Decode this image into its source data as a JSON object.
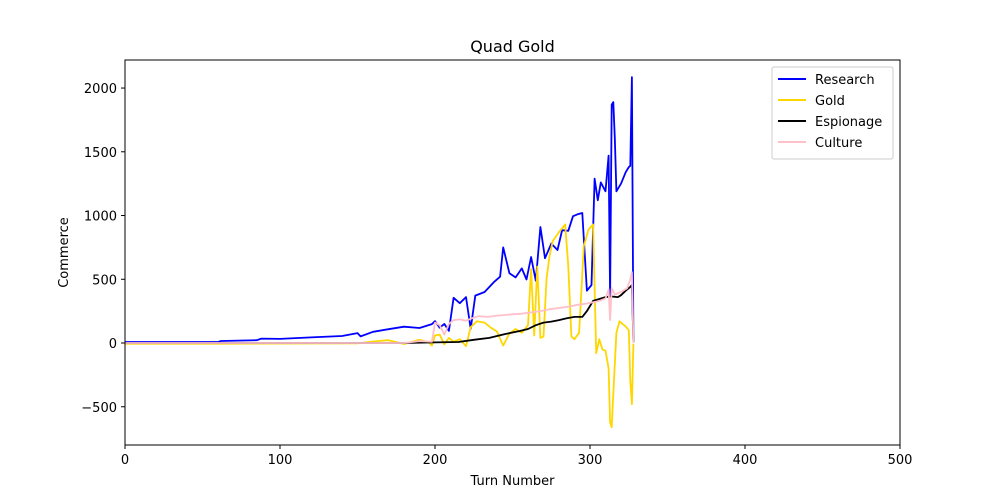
{
  "chart_data": {
    "type": "line",
    "title": "Quad Gold",
    "xlabel": "Turn Number",
    "ylabel": "Commerce",
    "xlim": [
      0,
      500
    ],
    "ylim": [
      -800,
      2220
    ],
    "x_ticks": [
      0,
      100,
      200,
      300,
      400,
      500
    ],
    "y_ticks": [
      -500,
      0,
      500,
      1000,
      1500,
      2000
    ],
    "x_tick_labels": [
      "0",
      "100",
      "200",
      "300",
      "400",
      "500"
    ],
    "y_tick_labels": [
      "−500",
      "0",
      "500",
      "1000",
      "1500",
      "2000"
    ],
    "grid": false,
    "legend_position": "top-right",
    "series": [
      {
        "name": "Research",
        "color": "#0000ff",
        "points": [
          [
            0,
            8
          ],
          [
            60,
            8
          ],
          [
            62,
            16
          ],
          [
            85,
            22
          ],
          [
            88,
            35
          ],
          [
            100,
            32
          ],
          [
            120,
            44
          ],
          [
            140,
            55
          ],
          [
            150,
            78
          ],
          [
            152,
            52
          ],
          [
            160,
            88
          ],
          [
            170,
            108
          ],
          [
            180,
            128
          ],
          [
            190,
            118
          ],
          [
            198,
            148
          ],
          [
            200,
            172
          ],
          [
            203,
            120
          ],
          [
            206,
            150
          ],
          [
            209,
            95
          ],
          [
            212,
            355
          ],
          [
            216,
            312
          ],
          [
            220,
            360
          ],
          [
            223,
            112
          ],
          [
            226,
            372
          ],
          [
            232,
            400
          ],
          [
            238,
            478
          ],
          [
            242,
            520
          ],
          [
            244,
            750
          ],
          [
            248,
            548
          ],
          [
            252,
            515
          ],
          [
            256,
            585
          ],
          [
            259,
            498
          ],
          [
            262,
            675
          ],
          [
            265,
            488
          ],
          [
            268,
            910
          ],
          [
            271,
            665
          ],
          [
            275,
            780
          ],
          [
            279,
            730
          ],
          [
            282,
            885
          ],
          [
            286,
            880
          ],
          [
            289,
            995
          ],
          [
            292,
            1010
          ],
          [
            295,
            1020
          ],
          [
            298,
            410
          ],
          [
            301,
            455
          ],
          [
            303,
            1290
          ],
          [
            305,
            1120
          ],
          [
            307,
            1260
          ],
          [
            310,
            1190
          ],
          [
            312,
            1470
          ],
          [
            313,
            370
          ],
          [
            314,
            1870
          ],
          [
            315,
            1890
          ],
          [
            316,
            1610
          ],
          [
            317,
            1190
          ],
          [
            320,
            1250
          ],
          [
            323,
            1340
          ],
          [
            325,
            1380
          ],
          [
            326,
            1390
          ],
          [
            327,
            2085
          ],
          [
            328,
            10
          ]
        ]
      },
      {
        "name": "Gold",
        "color": "#ffd700",
        "points": [
          [
            0,
            -5
          ],
          [
            60,
            -5
          ],
          [
            150,
            -3
          ],
          [
            160,
            12
          ],
          [
            170,
            22
          ],
          [
            180,
            -8
          ],
          [
            190,
            25
          ],
          [
            196,
            5
          ],
          [
            198,
            -20
          ],
          [
            200,
            60
          ],
          [
            203,
            65
          ],
          [
            206,
            -10
          ],
          [
            209,
            40
          ],
          [
            212,
            10
          ],
          [
            216,
            30
          ],
          [
            220,
            -25
          ],
          [
            223,
            125
          ],
          [
            227,
            170
          ],
          [
            232,
            160
          ],
          [
            236,
            120
          ],
          [
            240,
            90
          ],
          [
            244,
            -20
          ],
          [
            248,
            75
          ],
          [
            252,
            110
          ],
          [
            256,
            80
          ],
          [
            260,
            140
          ],
          [
            262,
            580
          ],
          [
            264,
            60
          ],
          [
            266,
            600
          ],
          [
            268,
            40
          ],
          [
            270,
            50
          ],
          [
            272,
            510
          ],
          [
            274,
            690
          ],
          [
            276,
            800
          ],
          [
            280,
            870
          ],
          [
            284,
            930
          ],
          [
            286,
            600
          ],
          [
            288,
            50
          ],
          [
            290,
            30
          ],
          [
            293,
            80
          ],
          [
            296,
            760
          ],
          [
            299,
            890
          ],
          [
            302,
            930
          ],
          [
            304,
            -80
          ],
          [
            306,
            30
          ],
          [
            308,
            -50
          ],
          [
            310,
            -60
          ],
          [
            312,
            -200
          ],
          [
            313,
            -620
          ],
          [
            314,
            -660
          ],
          [
            315,
            -400
          ],
          [
            317,
            80
          ],
          [
            319,
            170
          ],
          [
            321,
            150
          ],
          [
            323,
            130
          ],
          [
            325,
            100
          ],
          [
            326,
            -300
          ],
          [
            327,
            -480
          ],
          [
            328,
            -5
          ]
        ]
      },
      {
        "name": "Espionage",
        "color": "#000000",
        "points": [
          [
            0,
            0
          ],
          [
            180,
            0
          ],
          [
            200,
            5
          ],
          [
            215,
            8
          ],
          [
            225,
            25
          ],
          [
            235,
            40
          ],
          [
            245,
            70
          ],
          [
            255,
            95
          ],
          [
            260,
            110
          ],
          [
            265,
            140
          ],
          [
            270,
            160
          ],
          [
            275,
            168
          ],
          [
            280,
            180
          ],
          [
            285,
            195
          ],
          [
            290,
            205
          ],
          [
            295,
            205
          ],
          [
            298,
            250
          ],
          [
            302,
            330
          ],
          [
            306,
            345
          ],
          [
            310,
            360
          ],
          [
            314,
            365
          ],
          [
            318,
            360
          ],
          [
            320,
            375
          ],
          [
            323,
            410
          ],
          [
            326,
            440
          ],
          [
            327,
            455
          ],
          [
            328,
            5
          ]
        ]
      },
      {
        "name": "Culture",
        "color": "#ffc0cb",
        "points": [
          [
            0,
            0
          ],
          [
            180,
            0
          ],
          [
            190,
            15
          ],
          [
            198,
            10
          ],
          [
            200,
            160
          ],
          [
            203,
            140
          ],
          [
            206,
            65
          ],
          [
            209,
            150
          ],
          [
            212,
            180
          ],
          [
            216,
            185
          ],
          [
            220,
            175
          ],
          [
            224,
            195
          ],
          [
            228,
            210
          ],
          [
            234,
            205
          ],
          [
            240,
            215
          ],
          [
            245,
            220
          ],
          [
            250,
            225
          ],
          [
            256,
            230
          ],
          [
            262,
            240
          ],
          [
            268,
            250
          ],
          [
            274,
            265
          ],
          [
            280,
            275
          ],
          [
            286,
            285
          ],
          [
            292,
            300
          ],
          [
            298,
            310
          ],
          [
            302,
            320
          ],
          [
            306,
            330
          ],
          [
            310,
            350
          ],
          [
            312,
            420
          ],
          [
            313,
            180
          ],
          [
            314,
            430
          ],
          [
            316,
            380
          ],
          [
            320,
            400
          ],
          [
            324,
            430
          ],
          [
            326,
            500
          ],
          [
            327,
            555
          ],
          [
            328,
            5
          ]
        ]
      }
    ]
  }
}
